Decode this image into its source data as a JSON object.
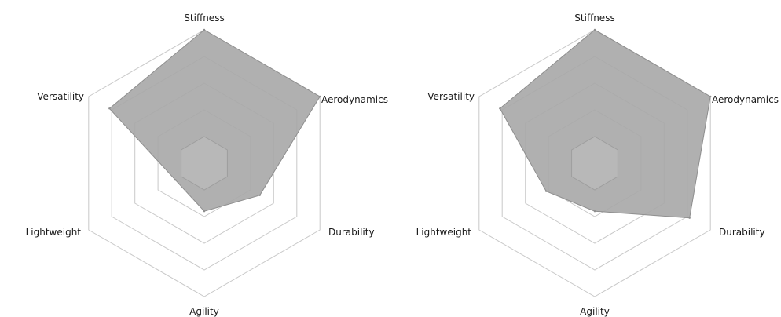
{
  "chart_data": [
    {
      "type": "radar",
      "axes": [
        "Stiffness",
        "Aerodynamics",
        "Durability",
        "Agility",
        "Lightweight",
        "Versatility"
      ],
      "levels": 5,
      "range": [
        0,
        5
      ],
      "values": [
        5.0,
        5.0,
        2.4,
        1.8,
        1.25,
        4.1
      ],
      "colors": {
        "area": "#a7a7a7",
        "grid": "#c9c9c9",
        "center": "#b8b8b8"
      }
    },
    {
      "type": "radar",
      "axes": [
        "Stiffness",
        "Aerodynamics",
        "Durability",
        "Agility",
        "Lightweight",
        "Versatility"
      ],
      "levels": 5,
      "range": [
        0,
        5
      ],
      "values": [
        5.0,
        5.0,
        4.1,
        1.8,
        2.1,
        4.1
      ],
      "colors": {
        "area": "#a7a7a7",
        "grid": "#c9c9c9",
        "center": "#b8b8b8"
      }
    }
  ]
}
